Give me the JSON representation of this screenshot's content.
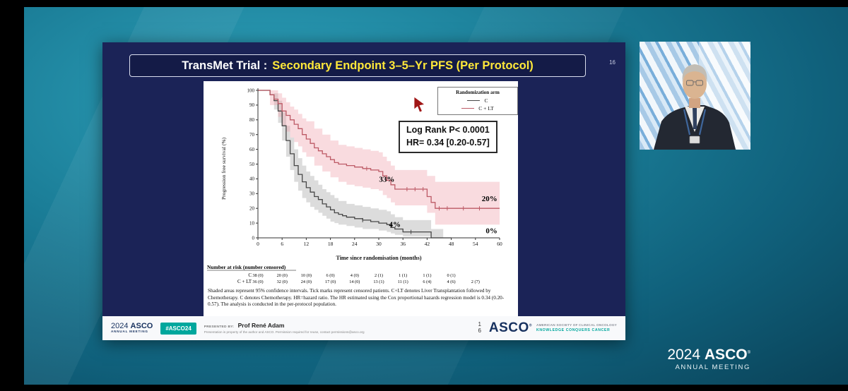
{
  "slide": {
    "number": "16",
    "title": {
      "prefix": "TransMet Trial :",
      "highlight": "Secondary Endpoint 3–5–Yr PFS (Per Protocol)"
    },
    "footer": {
      "brand_year": "2024",
      "brand_name": "ASCO",
      "brand_sub": "ANNUAL MEETING",
      "hashtag": "#ASCO24",
      "presented_by_label": "PRESENTED BY:",
      "presenter_name": "Prof René Adam",
      "disclaimer": "Presentation is property of the author and ASCO. Permission required for reuse, contact permissions@asco.org",
      "page_digit_top": "1",
      "page_digit_bottom": "6",
      "logo_name": "ASCO",
      "logo_reg": "®",
      "logo_tagline1": "AMERICAN SOCIETY OF CLINICAL ONCOLOGY",
      "logo_tagline2": "KNOWLEDGE CONQUERS CANCER"
    }
  },
  "chart_data": {
    "type": "line",
    "subtype": "kaplan-meier-step",
    "xlabel": "Time since randomisation (months)",
    "ylabel": "Progression free survival (%)",
    "xlim": [
      0,
      60
    ],
    "ylim": [
      0,
      100
    ],
    "xticks": [
      0,
      6,
      12,
      18,
      24,
      30,
      36,
      42,
      48,
      54,
      60
    ],
    "yticks": [
      0,
      10,
      20,
      30,
      40,
      50,
      60,
      70,
      80,
      90,
      100
    ],
    "legend": {
      "title": "Randomization arm",
      "entries": [
        {
          "label": "C",
          "color": "#474747"
        },
        {
          "label": "C + LT",
          "color": "#bd5a66"
        }
      ]
    },
    "stats_box": {
      "line1": "Log Rank P< 0.0001",
      "line2": "HR= 0.34 [0.20-0.57]"
    },
    "series": [
      {
        "name": "C",
        "color": "#474747",
        "ci_color": "rgba(130,130,130,0.28)",
        "steps": [
          [
            0,
            100
          ],
          [
            3,
            97
          ],
          [
            4,
            93
          ],
          [
            5,
            86
          ],
          [
            6,
            76
          ],
          [
            7,
            66
          ],
          [
            8,
            57
          ],
          [
            9,
            49
          ],
          [
            10,
            43
          ],
          [
            11,
            38
          ],
          [
            12,
            34
          ],
          [
            13,
            31
          ],
          [
            14,
            28
          ],
          [
            15,
            26
          ],
          [
            16,
            23
          ],
          [
            17,
            21
          ],
          [
            18,
            19
          ],
          [
            19,
            17
          ],
          [
            20,
            16
          ],
          [
            21,
            15
          ],
          [
            22,
            14
          ],
          [
            24,
            13
          ],
          [
            26,
            12
          ],
          [
            28,
            11
          ],
          [
            30,
            10
          ],
          [
            32,
            9
          ],
          [
            33,
            7
          ],
          [
            34,
            6
          ],
          [
            36,
            4
          ],
          [
            42,
            4
          ],
          [
            43,
            0
          ],
          [
            48,
            0
          ]
        ],
        "ci_upper": [
          [
            0,
            100
          ],
          [
            4,
            98
          ],
          [
            5,
            93
          ],
          [
            6,
            85
          ],
          [
            7,
            76
          ],
          [
            8,
            68
          ],
          [
            9,
            60
          ],
          [
            10,
            54
          ],
          [
            11,
            49
          ],
          [
            12,
            45
          ],
          [
            13,
            42
          ],
          [
            14,
            39
          ],
          [
            15,
            36
          ],
          [
            16,
            33
          ],
          [
            17,
            31
          ],
          [
            18,
            29
          ],
          [
            19,
            27
          ],
          [
            20,
            25
          ],
          [
            22,
            23
          ],
          [
            24,
            22
          ],
          [
            26,
            21
          ],
          [
            28,
            20
          ],
          [
            30,
            19
          ],
          [
            32,
            18
          ],
          [
            33,
            16
          ],
          [
            34,
            14
          ],
          [
            36,
            12
          ],
          [
            42,
            12
          ],
          [
            43,
            6
          ],
          [
            46,
            6
          ]
        ],
        "ci_lower": [
          [
            0,
            100
          ],
          [
            4,
            87
          ],
          [
            5,
            78
          ],
          [
            6,
            66
          ],
          [
            7,
            55
          ],
          [
            8,
            46
          ],
          [
            9,
            38
          ],
          [
            10,
            32
          ],
          [
            11,
            27
          ],
          [
            12,
            24
          ],
          [
            13,
            21
          ],
          [
            14,
            19
          ],
          [
            15,
            17
          ],
          [
            16,
            15
          ],
          [
            17,
            13
          ],
          [
            18,
            11
          ],
          [
            19,
            10
          ],
          [
            20,
            9
          ],
          [
            22,
            8
          ],
          [
            24,
            7
          ],
          [
            26,
            6
          ],
          [
            28,
            6
          ],
          [
            30,
            5
          ],
          [
            32,
            4
          ],
          [
            33,
            3
          ],
          [
            34,
            2
          ],
          [
            36,
            1
          ],
          [
            42,
            1
          ],
          [
            43,
            0
          ],
          [
            46,
            0
          ]
        ],
        "censor_x": [
          26,
          38
        ]
      },
      {
        "name": "C + LT",
        "color": "#bd5a66",
        "ci_color": "rgba(238,160,170,0.38)",
        "steps": [
          [
            0,
            100
          ],
          [
            3,
            97
          ],
          [
            4,
            94
          ],
          [
            5,
            91
          ],
          [
            6,
            86
          ],
          [
            7,
            83
          ],
          [
            8,
            80
          ],
          [
            9,
            77
          ],
          [
            10,
            74
          ],
          [
            11,
            70
          ],
          [
            12,
            67
          ],
          [
            13,
            64
          ],
          [
            14,
            61
          ],
          [
            15,
            59
          ],
          [
            16,
            57
          ],
          [
            17,
            55
          ],
          [
            18,
            53
          ],
          [
            19,
            51
          ],
          [
            20,
            50
          ],
          [
            22,
            49
          ],
          [
            24,
            48
          ],
          [
            26,
            47
          ],
          [
            28,
            46
          ],
          [
            30,
            45
          ],
          [
            31,
            42
          ],
          [
            32,
            39
          ],
          [
            33,
            36
          ],
          [
            34,
            33
          ],
          [
            40,
            33
          ],
          [
            42,
            28
          ],
          [
            43,
            24
          ],
          [
            44,
            20
          ],
          [
            60,
            20
          ]
        ],
        "ci_upper": [
          [
            0,
            100
          ],
          [
            3,
            100
          ],
          [
            5,
            98
          ],
          [
            6,
            95
          ],
          [
            7,
            92
          ],
          [
            8,
            89
          ],
          [
            9,
            87
          ],
          [
            10,
            84
          ],
          [
            11,
            81
          ],
          [
            12,
            79
          ],
          [
            14,
            74
          ],
          [
            16,
            70
          ],
          [
            18,
            66
          ],
          [
            20,
            63
          ],
          [
            22,
            62
          ],
          [
            24,
            61
          ],
          [
            26,
            60
          ],
          [
            28,
            59
          ],
          [
            30,
            58
          ],
          [
            31,
            55
          ],
          [
            32,
            52
          ],
          [
            33,
            49
          ],
          [
            34,
            46
          ],
          [
            40,
            46
          ],
          [
            42,
            42
          ],
          [
            44,
            38
          ],
          [
            60,
            38
          ]
        ],
        "ci_lower": [
          [
            0,
            100
          ],
          [
            3,
            90
          ],
          [
            5,
            82
          ],
          [
            6,
            76
          ],
          [
            7,
            72
          ],
          [
            8,
            68
          ],
          [
            9,
            65
          ],
          [
            10,
            62
          ],
          [
            11,
            58
          ],
          [
            12,
            55
          ],
          [
            14,
            49
          ],
          [
            16,
            45
          ],
          [
            18,
            41
          ],
          [
            20,
            38
          ],
          [
            22,
            36
          ],
          [
            24,
            35
          ],
          [
            26,
            34
          ],
          [
            28,
            33
          ],
          [
            30,
            32
          ],
          [
            31,
            29
          ],
          [
            32,
            27
          ],
          [
            33,
            24
          ],
          [
            34,
            22
          ],
          [
            40,
            22
          ],
          [
            42,
            17
          ],
          [
            44,
            9
          ],
          [
            60,
            7
          ]
        ],
        "censor_x": [
          27,
          37,
          39,
          41,
          45,
          47,
          51,
          55
        ]
      }
    ],
    "annotations": [
      {
        "text": "33%",
        "x": 32,
        "y": 38
      },
      {
        "text": "20%",
        "x": 57.5,
        "y": 25
      },
      {
        "text": "4%",
        "x": 34,
        "y": 7.5
      },
      {
        "text": "0%",
        "x": 58,
        "y": 3
      }
    ],
    "risk_table": {
      "title": "Number at risk (number censored)",
      "rows": [
        {
          "label": "C",
          "values": [
            "38 (0)",
            "20 (0)",
            "10 (0)",
            "6 (0)",
            "4 (0)",
            "2 (1)",
            "1 (1)",
            "1 (1)",
            "0 (1)"
          ]
        },
        {
          "label": "C + LT",
          "values": [
            "36 (0)",
            "32 (0)",
            "24 (0)",
            "17 (0)",
            "14 (0)",
            "13 (1)",
            "11 (1)",
            "6 (4)",
            "4 (6)",
            "2 (7)"
          ]
        }
      ]
    },
    "footnote": "Shaded areas represent 95% confidence intervals. Tick marks represent censored patients. C+LT denotes Liver Transplantation followed by Chemotherapy. C denotes Chemotherapy. HR=hazard ratio. The HR estimated using the Cox proportional hazards regression model is 0.34 (0.20-0.57). The analysis is conducted in the per-protocol population."
  },
  "watermark": {
    "year": "2024",
    "brand": "ASCO",
    "reg": "®",
    "line2": "ANNUAL MEETING"
  }
}
